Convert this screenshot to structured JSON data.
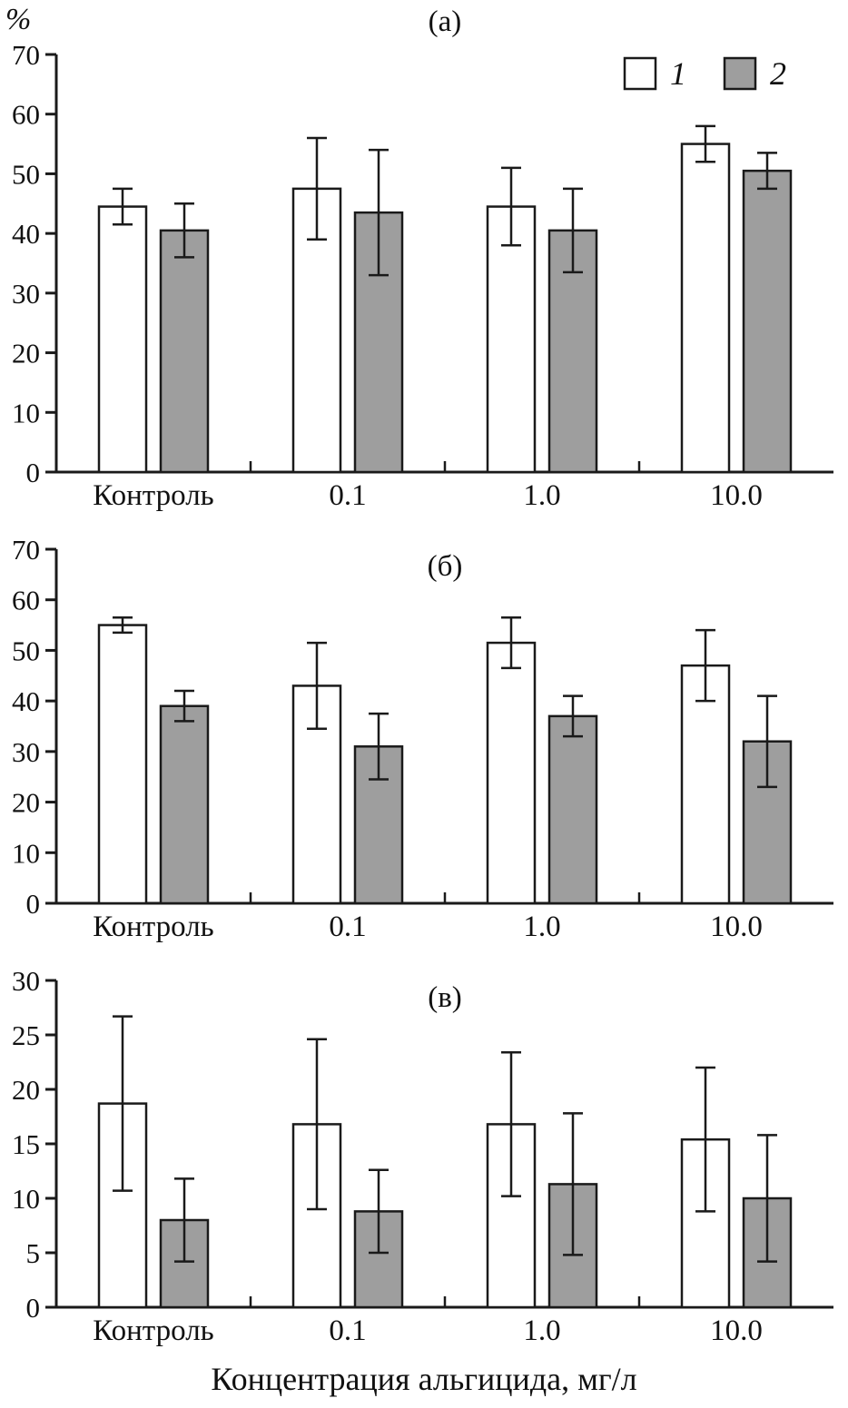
{
  "page": {
    "y_unit_label": "%",
    "x_axis_label": "Концентрация альгицида, мг/л"
  },
  "legend": {
    "position": "top-right",
    "items": [
      {
        "label": "1",
        "color": "#ffffff"
      },
      {
        "label": "2",
        "color": "#9e9e9e"
      }
    ]
  },
  "colors": {
    "axis": "#1a1a1a",
    "bar_outline": "#1a1a1a",
    "series1_fill": "#ffffff",
    "series2_fill": "#9e9e9e"
  },
  "chart_data": [
    {
      "type": "bar",
      "title": "(а)",
      "categories": [
        "Контроль",
        "0.1",
        "1.0",
        "10.0"
      ],
      "ylim": [
        0,
        70
      ],
      "ytick_step": 10,
      "grid": false,
      "legend_position": "top-right",
      "series": [
        {
          "name": "1",
          "color": "#ffffff",
          "values": [
            44.5,
            47.5,
            44.5,
            55.0
          ],
          "errors": [
            3.0,
            8.5,
            6.5,
            3.0
          ]
        },
        {
          "name": "2",
          "color": "#9e9e9e",
          "values": [
            40.5,
            43.5,
            40.5,
            50.5
          ],
          "errors": [
            4.5,
            10.5,
            7.0,
            3.0
          ]
        }
      ]
    },
    {
      "type": "bar",
      "title": "(б)",
      "categories": [
        "Контроль",
        "0.1",
        "1.0",
        "10.0"
      ],
      "ylim": [
        0,
        70
      ],
      "ytick_step": 10,
      "grid": false,
      "series": [
        {
          "name": "1",
          "color": "#ffffff",
          "values": [
            55.0,
            43.0,
            51.5,
            47.0
          ],
          "errors": [
            1.5,
            8.5,
            5.0,
            7.0
          ]
        },
        {
          "name": "2",
          "color": "#9e9e9e",
          "values": [
            39.0,
            31.0,
            37.0,
            32.0
          ],
          "errors": [
            3.0,
            6.5,
            4.0,
            9.0
          ]
        }
      ]
    },
    {
      "type": "bar",
      "title": "(в)",
      "categories": [
        "Контроль",
        "0.1",
        "1.0",
        "10.0"
      ],
      "ylim": [
        0,
        30
      ],
      "ytick_step": 5,
      "grid": false,
      "series": [
        {
          "name": "1",
          "color": "#ffffff",
          "values": [
            18.7,
            16.8,
            16.8,
            15.4
          ],
          "errors": [
            8.0,
            7.8,
            6.6,
            6.6
          ]
        },
        {
          "name": "2",
          "color": "#9e9e9e",
          "values": [
            8.0,
            8.8,
            11.3,
            10.0
          ],
          "errors": [
            3.8,
            3.8,
            6.5,
            5.8
          ]
        }
      ]
    }
  ]
}
